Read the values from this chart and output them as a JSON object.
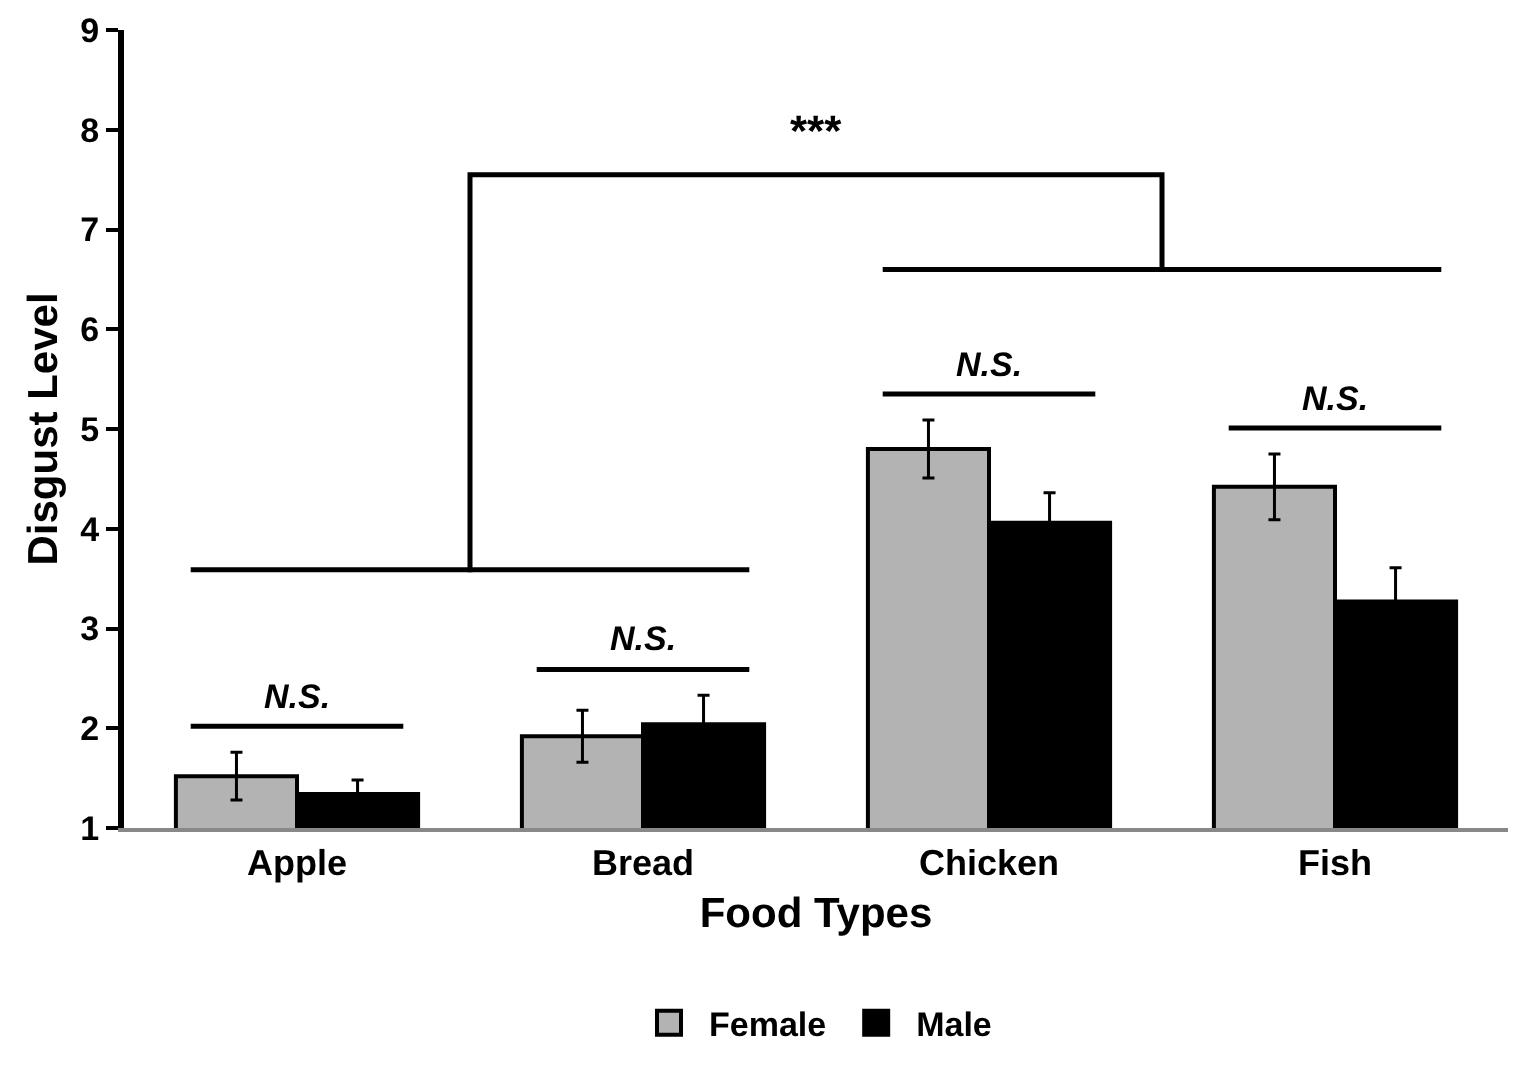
{
  "chart_data": {
    "type": "bar",
    "xlabel": "Food Types",
    "ylabel": "Disgust Level",
    "categories": [
      "Apple",
      "Bread",
      "Chicken",
      "Fish"
    ],
    "series": [
      {
        "name": "Female",
        "color": "#b3b3b3",
        "values": [
          1.52,
          1.92,
          4.8,
          4.42
        ],
        "errors": [
          0.24,
          0.26,
          0.29,
          0.33
        ]
      },
      {
        "name": "Male",
        "color": "#000000",
        "values": [
          1.34,
          2.04,
          4.06,
          3.27
        ],
        "errors": [
          0.14,
          0.29,
          0.3,
          0.34
        ]
      }
    ],
    "ylim": [
      1,
      9
    ],
    "yticks": [
      1,
      2,
      3,
      4,
      5,
      6,
      7,
      8,
      9
    ],
    "grid": false,
    "legend": "bottom",
    "annotations": [
      "N.S.",
      "N.S.",
      "N.S.",
      "N.S.",
      "***"
    ]
  }
}
